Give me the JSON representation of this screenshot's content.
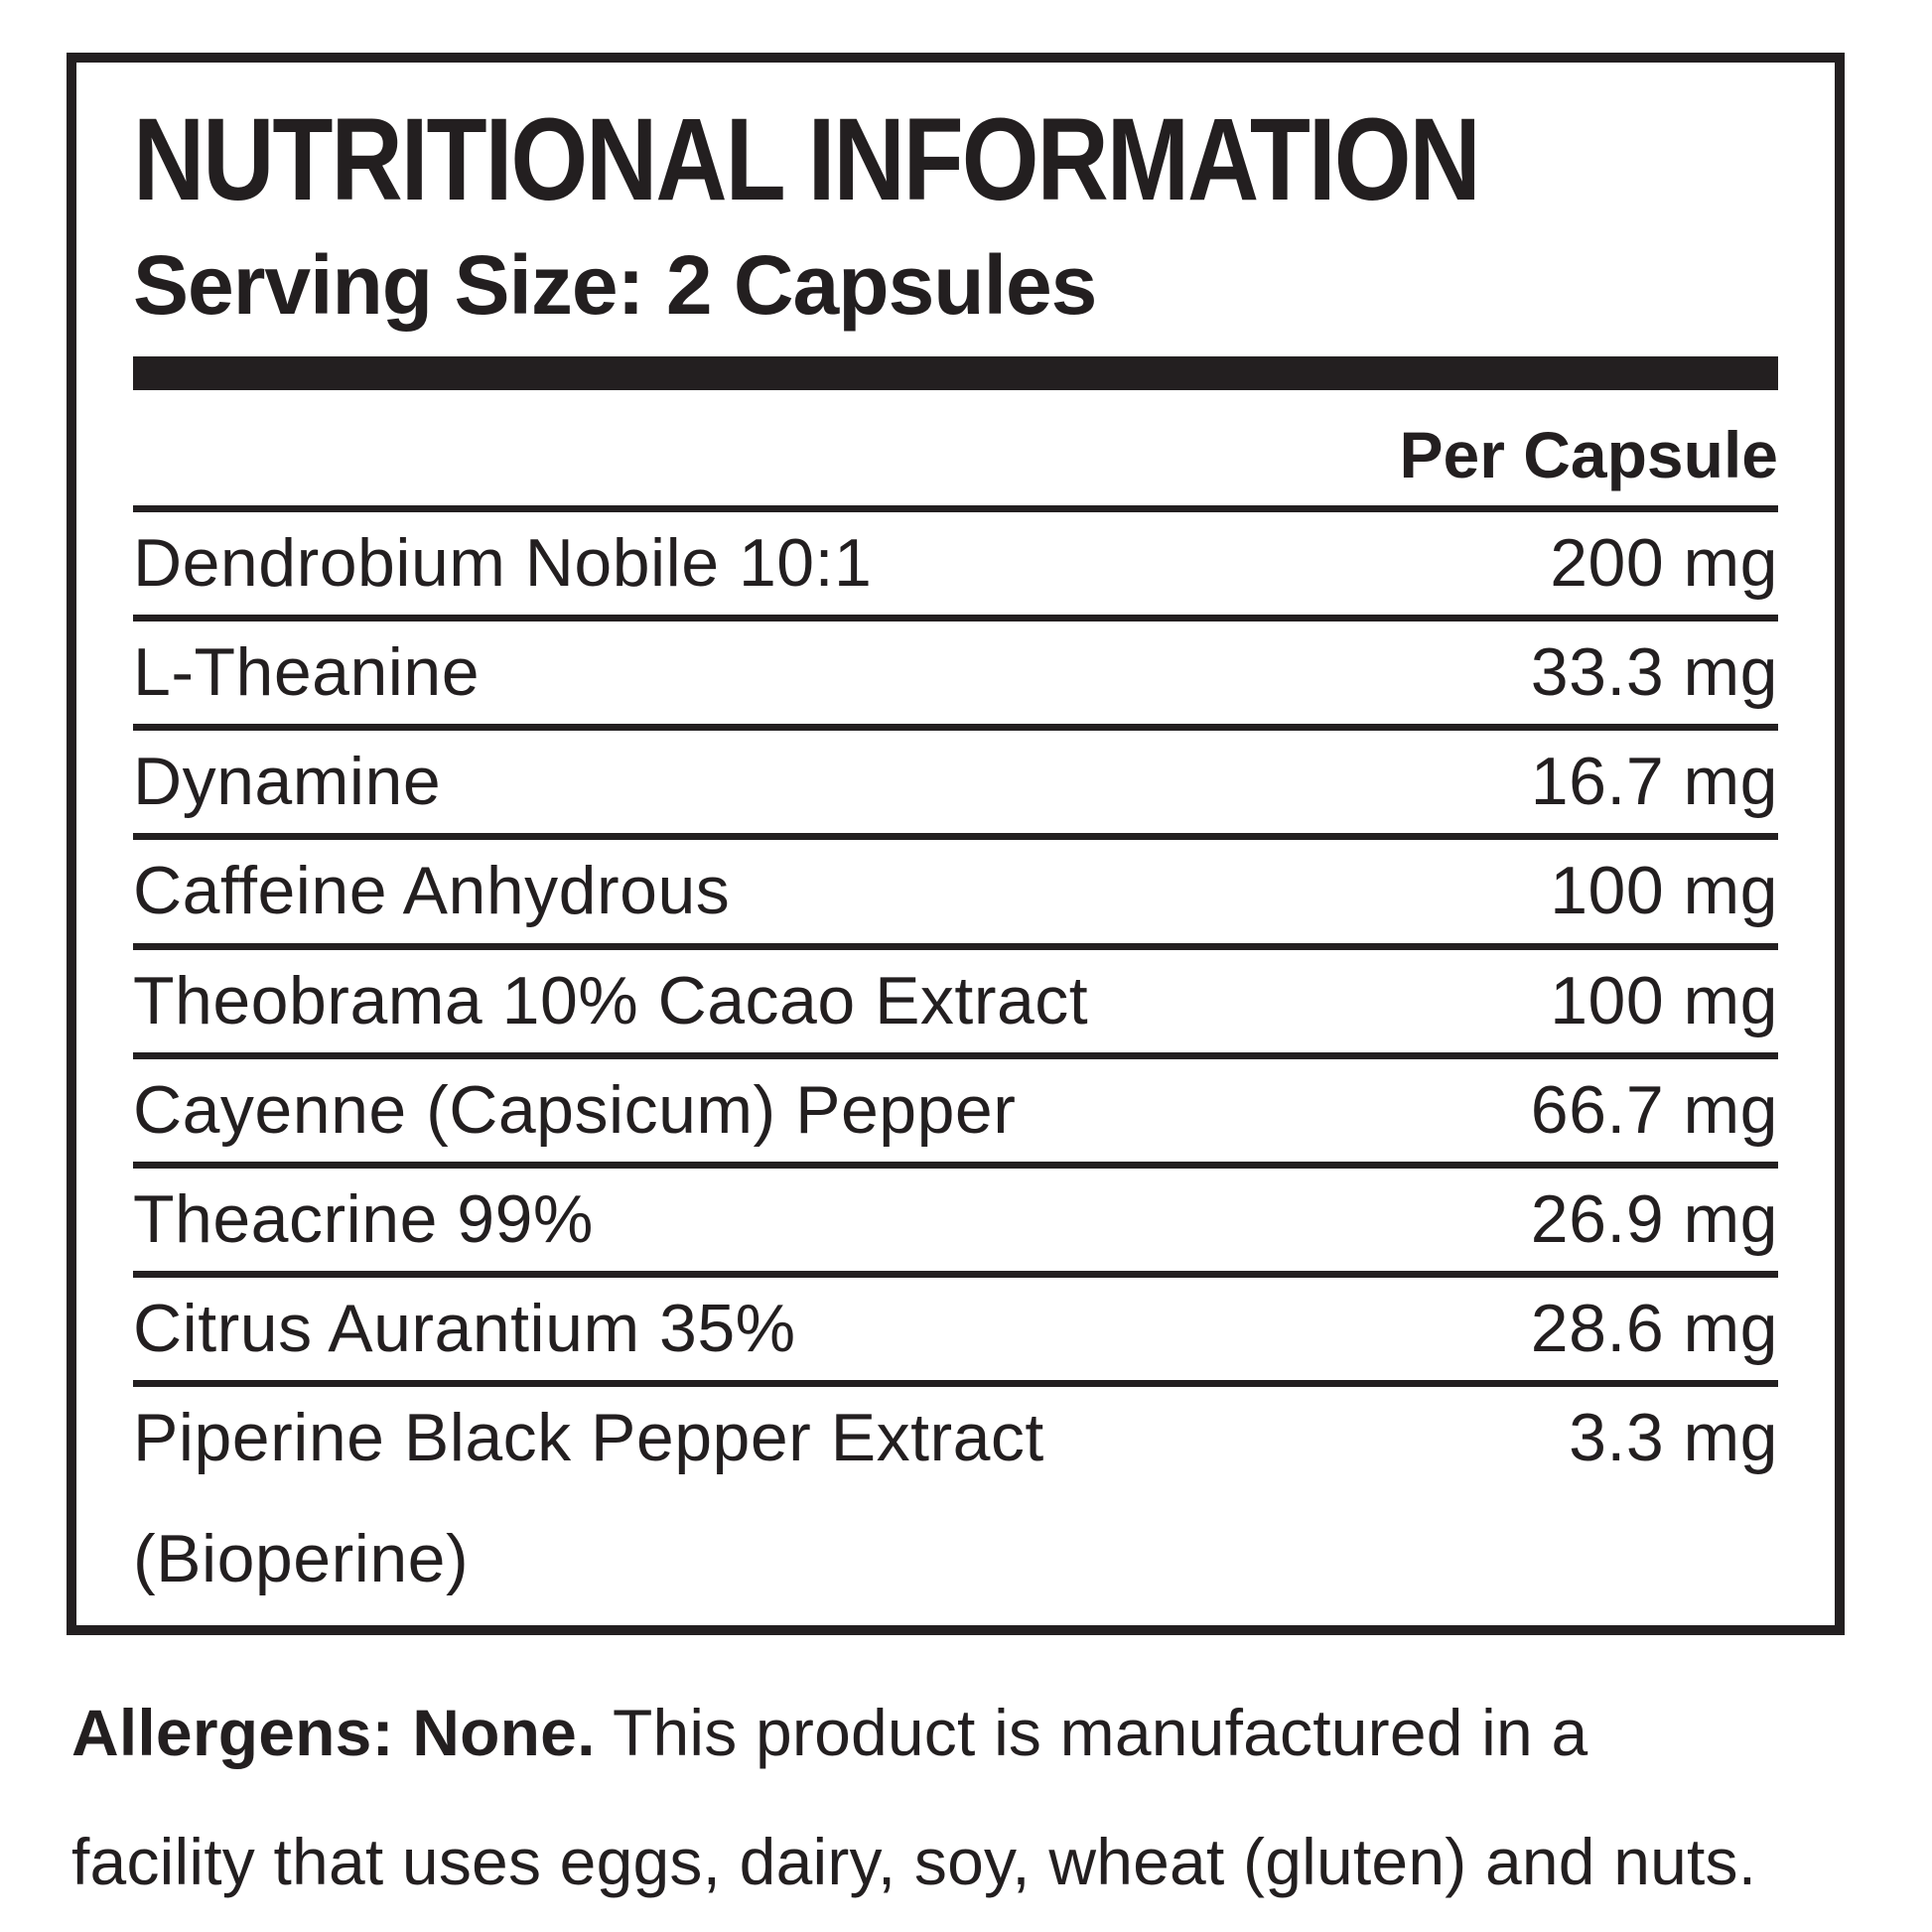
{
  "colors": {
    "ink": "#231f20",
    "background": "#ffffff"
  },
  "label": {
    "title": "NUTRITIONAL INFORMATION",
    "serving_size": "Serving Size: 2 Capsules",
    "column_header": "Per Capsule",
    "rows": [
      {
        "name": "Dendrobium Nobile 10:1",
        "value": "200 mg"
      },
      {
        "name": "L-Theanine",
        "value": "33.3 mg"
      },
      {
        "name": "Dynamine",
        "value": "16.7 mg"
      },
      {
        "name": "Caffeine Anhydrous",
        "value": "100 mg"
      },
      {
        "name": "Theobrama 10% Cacao Extract",
        "value": "100 mg"
      },
      {
        "name": "Cayenne (Capsicum) Pepper",
        "value": "66.7 mg"
      },
      {
        "name": "Theacrine 99%",
        "value": "26.9 mg"
      },
      {
        "name": "Citrus Aurantium 35%",
        "value": "28.6 mg"
      },
      {
        "name": "Piperine Black Pepper Extract",
        "name_line2": "(Bioperine)",
        "value": "3.3 mg"
      }
    ]
  },
  "allergens": {
    "bold_intro": "Allergens: None.",
    "line1_rest": " This product is manufactured in a",
    "line2": "facility that uses eggs, dairy, soy, wheat (gluten) and nuts."
  }
}
